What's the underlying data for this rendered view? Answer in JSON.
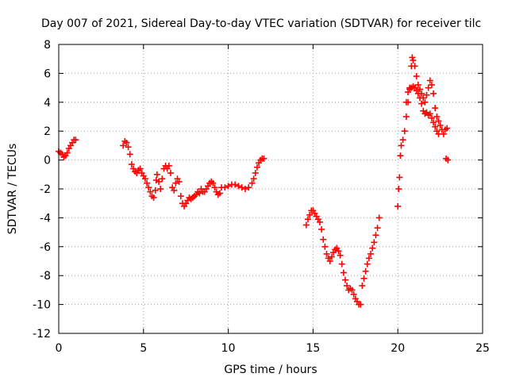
{
  "chart_data": {
    "type": "scatter",
    "title": "Day 007 of 2021, Sidereal Day-to-day VTEC variation (SDTVAR) for receiver tilc",
    "xlabel": "GPS time / hours",
    "ylabel": "SDTVAR / TECUs",
    "xlim": [
      0,
      25
    ],
    "ylim": [
      -12,
      8
    ],
    "x_ticks": [
      0,
      5,
      10,
      15,
      20,
      25
    ],
    "y_ticks": [
      -12,
      -10,
      -8,
      -6,
      -4,
      -2,
      0,
      2,
      4,
      6,
      8
    ],
    "grid": true,
    "marker": "+",
    "color": "#ff0000",
    "series": [
      {
        "points": [
          [
            0.0,
            0.6
          ],
          [
            0.1,
            0.5
          ],
          [
            0.2,
            0.4
          ],
          [
            0.3,
            0.2
          ],
          [
            0.4,
            0.3
          ],
          [
            0.5,
            0.5
          ],
          [
            0.6,
            0.8
          ],
          [
            0.7,
            1.0
          ],
          [
            0.8,
            1.2
          ],
          [
            0.9,
            1.4
          ],
          [
            1.0,
            1.4
          ],
          [
            3.8,
            1.0
          ],
          [
            3.9,
            1.3
          ],
          [
            4.0,
            1.2
          ],
          [
            4.1,
            0.9
          ],
          [
            4.2,
            0.4
          ],
          [
            4.3,
            -0.3
          ],
          [
            4.4,
            -0.6
          ],
          [
            4.5,
            -0.8
          ],
          [
            4.6,
            -0.9
          ],
          [
            4.7,
            -0.7
          ],
          [
            4.8,
            -0.6
          ],
          [
            4.9,
            -0.9
          ],
          [
            5.0,
            -1.1
          ],
          [
            5.1,
            -1.3
          ],
          [
            5.2,
            -1.6
          ],
          [
            5.3,
            -1.9
          ],
          [
            5.4,
            -2.2
          ],
          [
            5.5,
            -2.5
          ],
          [
            5.6,
            -2.6
          ],
          [
            5.7,
            -2.1
          ],
          [
            5.75,
            -1.4
          ],
          [
            5.8,
            -1.0
          ],
          [
            5.9,
            -1.5
          ],
          [
            6.0,
            -2.0
          ],
          [
            6.1,
            -1.3
          ],
          [
            6.2,
            -0.6
          ],
          [
            6.3,
            -0.4
          ],
          [
            6.4,
            -0.6
          ],
          [
            6.5,
            -0.4
          ],
          [
            6.6,
            -0.9
          ],
          [
            6.7,
            -1.9
          ],
          [
            6.8,
            -2.1
          ],
          [
            6.9,
            -1.6
          ],
          [
            7.0,
            -1.3
          ],
          [
            7.1,
            -1.5
          ],
          [
            7.2,
            -2.5
          ],
          [
            7.3,
            -3.0
          ],
          [
            7.4,
            -3.2
          ],
          [
            7.5,
            -3.0
          ],
          [
            7.6,
            -2.8
          ],
          [
            7.7,
            -2.6
          ],
          [
            7.8,
            -2.7
          ],
          [
            7.9,
            -2.6
          ],
          [
            8.0,
            -2.5
          ],
          [
            8.1,
            -2.4
          ],
          [
            8.2,
            -2.2
          ],
          [
            8.3,
            -2.3
          ],
          [
            8.4,
            -2.0
          ],
          [
            8.5,
            -2.2
          ],
          [
            8.6,
            -2.2
          ],
          [
            8.7,
            -2.0
          ],
          [
            8.8,
            -1.8
          ],
          [
            8.9,
            -1.6
          ],
          [
            9.0,
            -1.5
          ],
          [
            9.1,
            -1.6
          ],
          [
            9.2,
            -1.9
          ],
          [
            9.3,
            -2.2
          ],
          [
            9.4,
            -2.4
          ],
          [
            9.5,
            -2.3
          ],
          [
            9.6,
            -1.9
          ],
          [
            9.8,
            -1.9
          ],
          [
            10.0,
            -1.8
          ],
          [
            10.2,
            -1.7
          ],
          [
            10.4,
            -1.7
          ],
          [
            10.6,
            -1.8
          ],
          [
            10.8,
            -1.9
          ],
          [
            11.0,
            -2.0
          ],
          [
            11.2,
            -1.9
          ],
          [
            11.4,
            -1.6
          ],
          [
            11.5,
            -1.3
          ],
          [
            11.6,
            -0.9
          ],
          [
            11.7,
            -0.5
          ],
          [
            11.8,
            -0.2
          ],
          [
            11.9,
            0.0
          ],
          [
            12.0,
            0.1
          ],
          [
            12.1,
            0.1
          ],
          [
            14.6,
            -4.5
          ],
          [
            14.7,
            -4.1
          ],
          [
            14.8,
            -3.8
          ],
          [
            14.9,
            -3.5
          ],
          [
            15.0,
            -3.5
          ],
          [
            15.1,
            -3.7
          ],
          [
            15.2,
            -3.9
          ],
          [
            15.3,
            -4.1
          ],
          [
            15.4,
            -4.3
          ],
          [
            15.5,
            -4.8
          ],
          [
            15.6,
            -5.5
          ],
          [
            15.7,
            -6.0
          ],
          [
            15.8,
            -6.5
          ],
          [
            15.9,
            -6.8
          ],
          [
            16.0,
            -7.0
          ],
          [
            16.1,
            -6.7
          ],
          [
            16.2,
            -6.4
          ],
          [
            16.3,
            -6.2
          ],
          [
            16.4,
            -6.1
          ],
          [
            16.5,
            -6.3
          ],
          [
            16.6,
            -6.6
          ],
          [
            16.7,
            -7.2
          ],
          [
            16.8,
            -7.8
          ],
          [
            16.9,
            -8.3
          ],
          [
            17.0,
            -8.7
          ],
          [
            17.1,
            -9.0
          ],
          [
            17.2,
            -8.9
          ],
          [
            17.3,
            -9.0
          ],
          [
            17.4,
            -9.3
          ],
          [
            17.5,
            -9.6
          ],
          [
            17.6,
            -9.8
          ],
          [
            17.7,
            -10.0
          ],
          [
            17.8,
            -10.0
          ],
          [
            17.9,
            -8.7
          ],
          [
            18.0,
            -8.2
          ],
          [
            18.1,
            -7.7
          ],
          [
            18.2,
            -7.2
          ],
          [
            18.3,
            -6.8
          ],
          [
            18.4,
            -6.5
          ],
          [
            18.5,
            -6.1
          ],
          [
            18.6,
            -5.7
          ],
          [
            18.7,
            -5.2
          ],
          [
            18.8,
            -4.7
          ],
          [
            18.9,
            -4.0
          ],
          [
            20.0,
            -3.2
          ],
          [
            20.05,
            -2.0
          ],
          [
            20.1,
            -1.2
          ],
          [
            20.15,
            0.3
          ],
          [
            20.2,
            1.0
          ],
          [
            20.3,
            1.4
          ],
          [
            20.4,
            2.0
          ],
          [
            20.5,
            3.0
          ],
          [
            20.6,
            4.0
          ],
          [
            20.7,
            5.0
          ],
          [
            20.8,
            6.5
          ],
          [
            20.85,
            7.1
          ],
          [
            20.9,
            6.9
          ],
          [
            21.0,
            6.5
          ],
          [
            21.1,
            5.8
          ],
          [
            21.2,
            5.2
          ],
          [
            21.3,
            4.9
          ],
          [
            21.4,
            4.6
          ],
          [
            21.5,
            4.3
          ],
          [
            21.6,
            4.0
          ],
          [
            21.7,
            4.5
          ],
          [
            21.8,
            5.0
          ],
          [
            21.9,
            5.5
          ],
          [
            22.0,
            5.2
          ],
          [
            22.1,
            4.6
          ],
          [
            22.2,
            3.6
          ],
          [
            22.3,
            3.0
          ],
          [
            22.4,
            2.7
          ],
          [
            22.5,
            2.4
          ],
          [
            22.6,
            2.1
          ],
          [
            22.7,
            1.8
          ],
          [
            22.8,
            2.1
          ],
          [
            22.9,
            2.2
          ],
          [
            22.85,
            0.1
          ],
          [
            22.95,
            0.0
          ],
          [
            20.5,
            4.0
          ],
          [
            20.6,
            4.7
          ],
          [
            20.7,
            4.9
          ],
          [
            20.8,
            5.0
          ],
          [
            20.9,
            5.1
          ],
          [
            21.0,
            5.0
          ],
          [
            21.1,
            4.8
          ],
          [
            21.2,
            4.6
          ],
          [
            21.3,
            4.3
          ],
          [
            21.4,
            3.9
          ],
          [
            21.5,
            3.4
          ],
          [
            21.6,
            3.2
          ],
          [
            21.7,
            3.3
          ],
          [
            21.8,
            3.1
          ],
          [
            21.9,
            3.2
          ],
          [
            22.0,
            2.9
          ],
          [
            22.1,
            2.6
          ],
          [
            22.2,
            2.3
          ],
          [
            22.3,
            2.0
          ],
          [
            22.4,
            1.8
          ]
        ]
      }
    ]
  }
}
